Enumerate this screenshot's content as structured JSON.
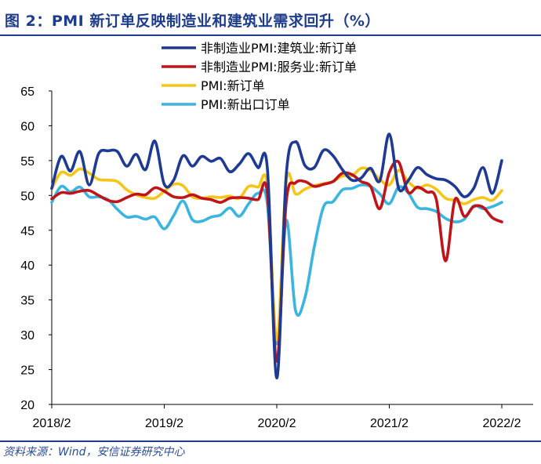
{
  "title": "图 2：PMI 新订单反映制造业和建筑业需求回升（%）",
  "source": "资料来源：Wind，安信证券研究中心",
  "chart_data": {
    "type": "line",
    "x": [
      "2018/2",
      "2018/3",
      "2018/4",
      "2018/5",
      "2018/6",
      "2018/7",
      "2018/8",
      "2018/9",
      "2018/10",
      "2018/11",
      "2018/12",
      "2019/1",
      "2019/2",
      "2019/3",
      "2019/4",
      "2019/5",
      "2019/6",
      "2019/7",
      "2019/8",
      "2019/9",
      "2019/10",
      "2019/11",
      "2019/12",
      "2020/1",
      "2020/2",
      "2020/3",
      "2020/4",
      "2020/5",
      "2020/6",
      "2020/7",
      "2020/8",
      "2020/9",
      "2020/10",
      "2020/11",
      "2020/12",
      "2021/1",
      "2021/2",
      "2021/3",
      "2021/4",
      "2021/5",
      "2021/6",
      "2021/7",
      "2021/8",
      "2021/9",
      "2021/10",
      "2021/11",
      "2021/12",
      "2022/1",
      "2022/2"
    ],
    "xticks": [
      "2018/2",
      "2019/2",
      "2020/2",
      "2021/2",
      "2022/2"
    ],
    "ylim": [
      20,
      65
    ],
    "yticks": [
      20,
      25,
      30,
      35,
      40,
      45,
      50,
      55,
      60,
      65
    ],
    "xlabel": "",
    "ylabel": "",
    "legend_position": "top-right",
    "series": [
      {
        "name": "非制造业PMI:建筑业:新订单",
        "color": "#1f3a93",
        "values": [
          51.0,
          55.6,
          53.5,
          56.3,
          51.5,
          56.0,
          56.4,
          56.3,
          54.2,
          55.9,
          53.7,
          57.8,
          51.6,
          52.2,
          55.7,
          54.2,
          55.6,
          54.9,
          55.3,
          53.4,
          54.5,
          56.0,
          54.0,
          53.9,
          23.8,
          52.8,
          57.7,
          54.3,
          54.0,
          56.5,
          55.7,
          53.7,
          52.2,
          52.5,
          53.9,
          52.1,
          58.8,
          51.0,
          52.1,
          54.0,
          53.0,
          52.4,
          52.2,
          51.3,
          49.8,
          51.0,
          54.0,
          50.3,
          55.0
        ]
      },
      {
        "name": "非制造业PMI:服务业:新订单",
        "color": "#c0141a",
        "values": [
          49.5,
          50.4,
          50.3,
          50.6,
          50.7,
          50.0,
          49.3,
          49.1,
          49.7,
          50.2,
          50.1,
          51.1,
          50.6,
          49.8,
          49.7,
          50.1,
          49.6,
          49.4,
          49.0,
          49.6,
          49.7,
          49.6,
          49.4,
          50.3,
          26.2,
          49.0,
          51.8,
          52.0,
          51.3,
          51.6,
          52.0,
          53.2,
          53.0,
          52.0,
          51.3,
          48.1,
          53.3,
          54.8,
          50.5,
          51.2,
          50.5,
          49.5,
          40.6,
          49.4,
          47.0,
          48.4,
          48.3,
          46.8,
          46.2
        ]
      },
      {
        "name": "PMI:新订单",
        "color": "#f5c518",
        "values": [
          51.0,
          53.3,
          52.9,
          53.8,
          53.2,
          52.3,
          52.2,
          52.0,
          50.8,
          50.1,
          49.7,
          49.6,
          50.6,
          51.6,
          51.4,
          49.8,
          49.6,
          49.8,
          49.7,
          49.9,
          49.6,
          51.3,
          51.2,
          51.4,
          29.3,
          52.0,
          50.2,
          50.9,
          51.4,
          51.7,
          52.0,
          52.8,
          52.8,
          53.9,
          53.6,
          52.3,
          51.5,
          53.6,
          52.0,
          51.0,
          51.5,
          50.9,
          49.6,
          49.3,
          48.8,
          49.4,
          49.7,
          49.3,
          50.7
        ]
      },
      {
        "name": "PMI:新出口订单",
        "color": "#3bb4e0",
        "values": [
          49.0,
          51.3,
          50.5,
          51.2,
          49.8,
          49.8,
          49.4,
          48.0,
          46.9,
          47.0,
          46.6,
          46.9,
          45.2,
          47.1,
          49.2,
          46.5,
          46.3,
          46.9,
          47.2,
          48.2,
          47.0,
          48.8,
          50.3,
          48.7,
          28.7,
          46.4,
          33.5,
          35.3,
          42.6,
          48.4,
          49.1,
          50.8,
          51.0,
          51.5,
          51.3,
          50.2,
          48.8,
          51.2,
          50.4,
          48.3,
          48.1,
          47.7,
          46.7,
          46.2,
          46.6,
          48.5,
          48.1,
          48.4,
          49.0
        ]
      }
    ]
  }
}
